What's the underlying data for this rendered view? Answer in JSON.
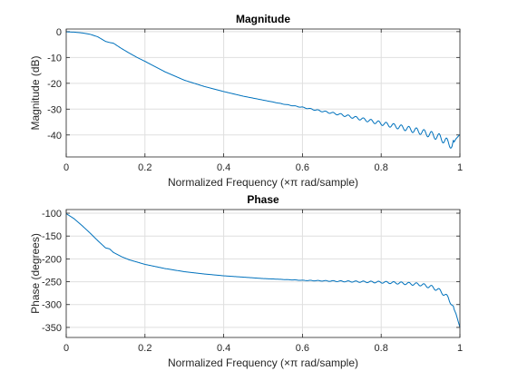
{
  "chart_data": [
    {
      "type": "line",
      "title": "Magnitude",
      "xlabel": "Normalized  Frequency    (×π  rad/sample)",
      "ylabel": "Magnitude (dB)",
      "xlim": [
        0,
        1
      ],
      "ylim": [
        -48.5,
        1
      ],
      "x_ticks": [
        0,
        0.2,
        0.4,
        0.6,
        0.8,
        1
      ],
      "x_tick_labels": [
        "0",
        "0.2",
        "0.4",
        "0.6",
        "0.8",
        "1"
      ],
      "y_ticks": [
        0,
        -10,
        -20,
        -30,
        -40
      ],
      "y_tick_labels": [
        "0",
        "-10",
        "-20",
        "-30",
        "-40"
      ],
      "grid": true,
      "color": "#0072bd",
      "series": [
        {
          "x": [
            0,
            0.02,
            0.04,
            0.06,
            0.08,
            0.1,
            0.11,
            0.12,
            0.14,
            0.16,
            0.18,
            0.2,
            0.25,
            0.3,
            0.35,
            0.4,
            0.45,
            0.5,
            0.55,
            0.6,
            0.65,
            0.7,
            0.75,
            0.8,
            0.85,
            0.9,
            0.93,
            0.95,
            0.97,
            0.98,
            0.99,
            1.0
          ],
          "y": [
            -0.1,
            -0.2,
            -0.5,
            -1.0,
            -2.0,
            -3.8,
            -4.2,
            -4.5,
            -6.5,
            -8.3,
            -10.0,
            -11.5,
            -15.5,
            -18.8,
            -21.2,
            -23.2,
            -25.0,
            -26.5,
            -28.0,
            -29.3,
            -30.8,
            -32.2,
            -33.8,
            -35.5,
            -37.0,
            -38.7,
            -40.0,
            -41.0,
            -43.0,
            -44.0,
            -41.5,
            -39.8
          ]
        }
      ]
    },
    {
      "type": "line",
      "title": "Phase",
      "xlabel": "Normalized  Frequency    (×π  rad/sample)",
      "ylabel": "Phase (degrees)",
      "xlim": [
        0,
        1
      ],
      "ylim": [
        -372,
        -92
      ],
      "x_ticks": [
        0,
        0.2,
        0.4,
        0.6,
        0.8,
        1
      ],
      "x_tick_labels": [
        "0",
        "0.2",
        "0.4",
        "0.6",
        "0.8",
        "1"
      ],
      "y_ticks": [
        -100,
        -150,
        -200,
        -250,
        -300,
        -350
      ],
      "y_tick_labels": [
        "-100",
        "-150",
        "-200",
        "-250",
        "-300",
        "-350"
      ],
      "grid": true,
      "color": "#0072bd",
      "series": [
        {
          "x": [
            0,
            0.02,
            0.04,
            0.06,
            0.08,
            0.1,
            0.11,
            0.12,
            0.14,
            0.16,
            0.18,
            0.2,
            0.25,
            0.3,
            0.35,
            0.4,
            0.45,
            0.5,
            0.55,
            0.6,
            0.65,
            0.7,
            0.75,
            0.8,
            0.85,
            0.9,
            0.93,
            0.95,
            0.97,
            0.98,
            0.99,
            1.0
          ],
          "y": [
            -101,
            -112,
            -127,
            -143,
            -160,
            -176,
            -178,
            -186,
            -195,
            -202,
            -207,
            -212,
            -221,
            -228,
            -233,
            -237,
            -240,
            -243,
            -245,
            -247,
            -248,
            -249,
            -250,
            -251,
            -253,
            -256,
            -262,
            -270,
            -285,
            -300,
            -320,
            -350
          ]
        }
      ]
    }
  ]
}
